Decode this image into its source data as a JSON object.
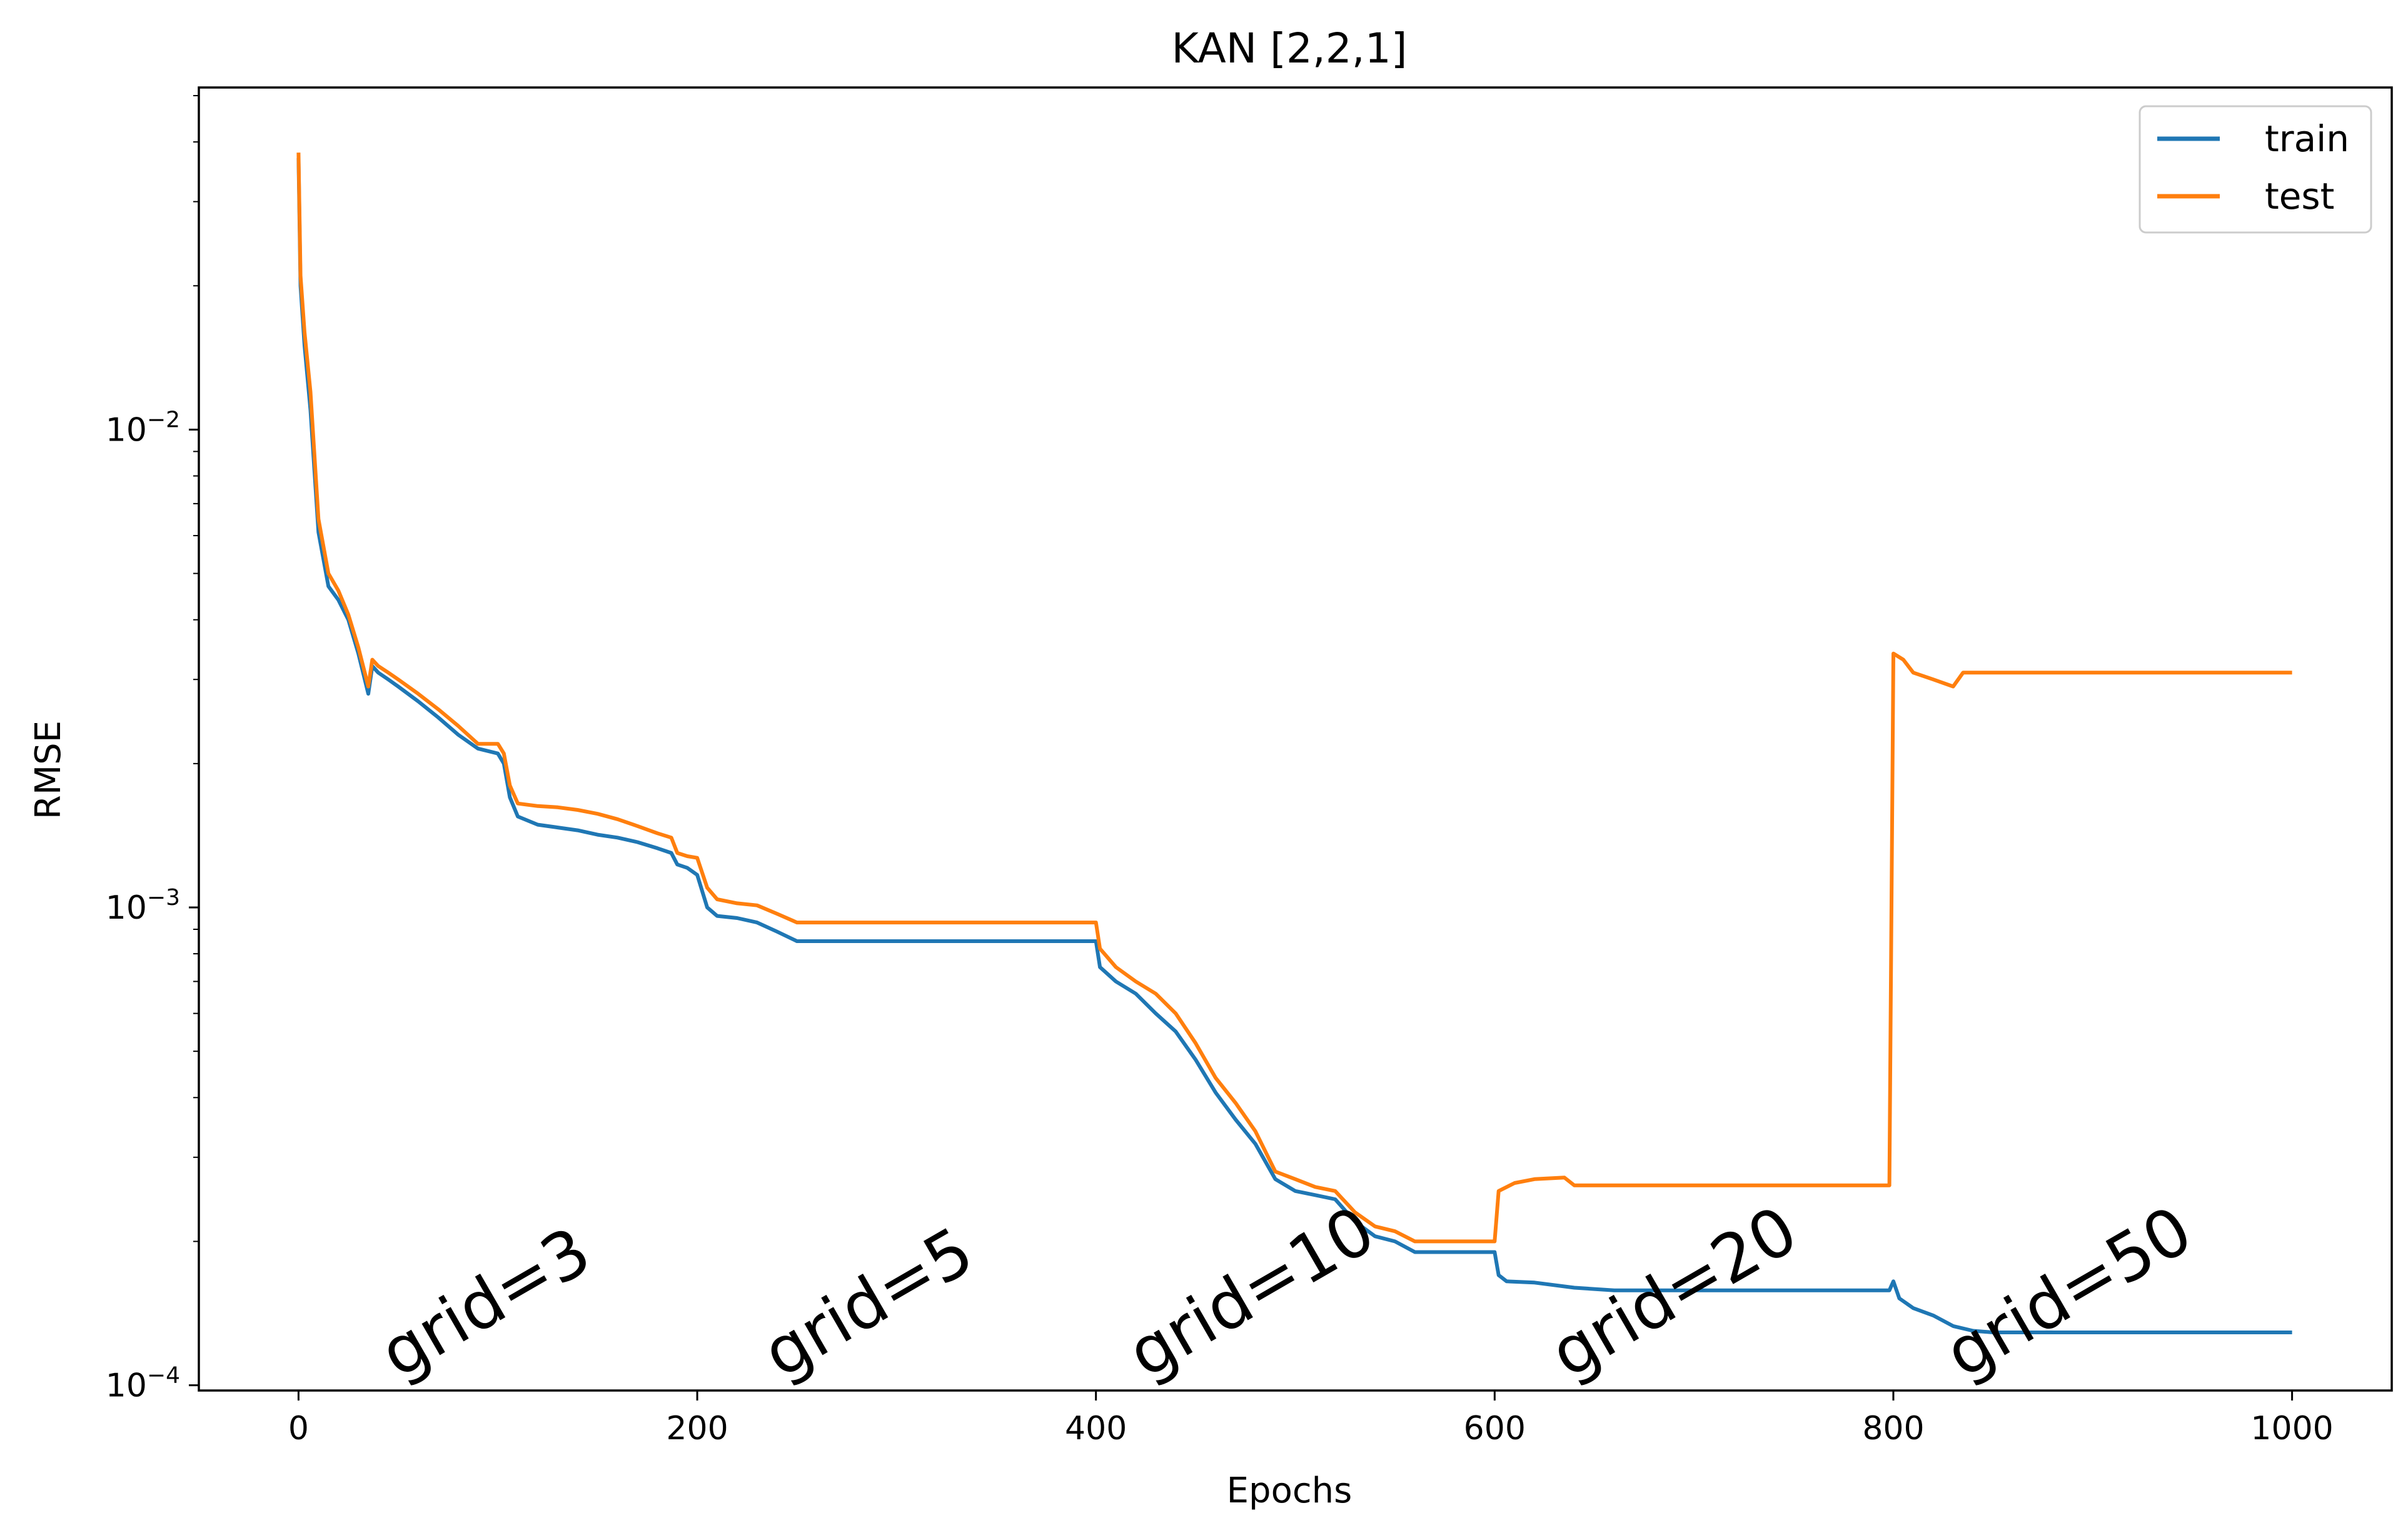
{
  "chart_data": {
    "type": "line",
    "title": "KAN [2,2,1]",
    "xlabel": "Epochs",
    "ylabel": "RMSE",
    "yscale": "log",
    "xlim": [
      -50,
      1050
    ],
    "ylim": [
      9.75e-05,
      0.052
    ],
    "x_ticks": [
      {
        "value": 0,
        "label": "0"
      },
      {
        "value": 200,
        "label": "200"
      },
      {
        "value": 400,
        "label": "400"
      },
      {
        "value": 600,
        "label": "600"
      },
      {
        "value": 800,
        "label": "800"
      },
      {
        "value": 1000,
        "label": "1000"
      }
    ],
    "y_ticks": [
      {
        "value": 0.0001,
        "base": "10",
        "exp": "−4"
      },
      {
        "value": 0.001,
        "base": "10",
        "exp": "−3"
      },
      {
        "value": 0.01,
        "base": "10",
        "exp": "−2"
      }
    ],
    "grid": false,
    "legend": {
      "placement": "top-right"
    },
    "series": [
      {
        "name": "train",
        "color": "#1f77b4",
        "points": [
          [
            0,
            0.037
          ],
          [
            1,
            0.02
          ],
          [
            3,
            0.015
          ],
          [
            6,
            0.011
          ],
          [
            10,
            0.0061
          ],
          [
            15,
            0.0047
          ],
          [
            20,
            0.0044
          ],
          [
            25,
            0.004
          ],
          [
            30,
            0.0034
          ],
          [
            35,
            0.0028
          ],
          [
            37,
            0.0032
          ],
          [
            40,
            0.0031
          ],
          [
            45,
            0.003
          ],
          [
            50,
            0.0029
          ],
          [
            60,
            0.0027
          ],
          [
            70,
            0.0025
          ],
          [
            80,
            0.0023
          ],
          [
            90,
            0.00215
          ],
          [
            100,
            0.0021
          ],
          [
            103,
            0.002
          ],
          [
            106,
            0.0017
          ],
          [
            110,
            0.00155
          ],
          [
            120,
            0.00149
          ],
          [
            130,
            0.00147
          ],
          [
            140,
            0.00145
          ],
          [
            150,
            0.00142
          ],
          [
            160,
            0.0014
          ],
          [
            170,
            0.00137
          ],
          [
            180,
            0.00133
          ],
          [
            187,
            0.0013
          ],
          [
            190,
            0.00123
          ],
          [
            195,
            0.00121
          ],
          [
            200,
            0.00117
          ],
          [
            205,
            0.001
          ],
          [
            210,
            0.00096
          ],
          [
            220,
            0.00095
          ],
          [
            230,
            0.00093
          ],
          [
            240,
            0.00089
          ],
          [
            250,
            0.00085
          ],
          [
            300,
            0.00085
          ],
          [
            350,
            0.00085
          ],
          [
            400,
            0.00085
          ],
          [
            402,
            0.00075
          ],
          [
            410,
            0.0007
          ],
          [
            420,
            0.00066
          ],
          [
            430,
            0.0006
          ],
          [
            440,
            0.00055
          ],
          [
            450,
            0.00048
          ],
          [
            460,
            0.00041
          ],
          [
            470,
            0.00036
          ],
          [
            480,
            0.00032
          ],
          [
            490,
            0.00027
          ],
          [
            500,
            0.000255
          ],
          [
            510,
            0.00025
          ],
          [
            520,
            0.000245
          ],
          [
            530,
            0.00022
          ],
          [
            540,
            0.000205
          ],
          [
            550,
            0.0002
          ],
          [
            560,
            0.00019
          ],
          [
            600,
            0.00019
          ],
          [
            602,
            0.00017
          ],
          [
            606,
            0.000165
          ],
          [
            620,
            0.000164
          ],
          [
            640,
            0.00016
          ],
          [
            660,
            0.000158
          ],
          [
            700,
            0.000158
          ],
          [
            750,
            0.000158
          ],
          [
            798,
            0.000158
          ],
          [
            800,
            0.000165
          ],
          [
            803,
            0.000152
          ],
          [
            810,
            0.000145
          ],
          [
            820,
            0.00014
          ],
          [
            830,
            0.000133
          ],
          [
            840,
            0.00013
          ],
          [
            850,
            0.000129
          ],
          [
            900,
            0.000129
          ],
          [
            1000,
            0.000129
          ]
        ]
      },
      {
        "name": "test",
        "color": "#ff7f0e",
        "points": [
          [
            0,
            0.038
          ],
          [
            1,
            0.021
          ],
          [
            3,
            0.016
          ],
          [
            6,
            0.012
          ],
          [
            10,
            0.0065
          ],
          [
            15,
            0.005
          ],
          [
            20,
            0.0046
          ],
          [
            25,
            0.0041
          ],
          [
            30,
            0.0035
          ],
          [
            35,
            0.0029
          ],
          [
            37,
            0.0033
          ],
          [
            40,
            0.0032
          ],
          [
            45,
            0.0031
          ],
          [
            50,
            0.003
          ],
          [
            60,
            0.0028
          ],
          [
            70,
            0.0026
          ],
          [
            80,
            0.0024
          ],
          [
            90,
            0.0022
          ],
          [
            100,
            0.0022
          ],
          [
            103,
            0.0021
          ],
          [
            106,
            0.0018
          ],
          [
            110,
            0.00165
          ],
          [
            120,
            0.00163
          ],
          [
            130,
            0.00162
          ],
          [
            140,
            0.0016
          ],
          [
            150,
            0.00157
          ],
          [
            160,
            0.00153
          ],
          [
            170,
            0.00148
          ],
          [
            180,
            0.00143
          ],
          [
            187,
            0.0014
          ],
          [
            190,
            0.0013
          ],
          [
            195,
            0.00128
          ],
          [
            200,
            0.00127
          ],
          [
            205,
            0.0011
          ],
          [
            210,
            0.00104
          ],
          [
            220,
            0.00102
          ],
          [
            230,
            0.00101
          ],
          [
            240,
            0.00097
          ],
          [
            250,
            0.00093
          ],
          [
            300,
            0.00093
          ],
          [
            350,
            0.00093
          ],
          [
            400,
            0.00093
          ],
          [
            402,
            0.00082
          ],
          [
            410,
            0.00075
          ],
          [
            420,
            0.0007
          ],
          [
            430,
            0.00066
          ],
          [
            440,
            0.0006
          ],
          [
            450,
            0.00052
          ],
          [
            460,
            0.00044
          ],
          [
            470,
            0.00039
          ],
          [
            480,
            0.00034
          ],
          [
            490,
            0.00028
          ],
          [
            500,
            0.00027
          ],
          [
            510,
            0.00026
          ],
          [
            520,
            0.000255
          ],
          [
            530,
            0.00023
          ],
          [
            540,
            0.000215
          ],
          [
            550,
            0.00021
          ],
          [
            560,
            0.0002
          ],
          [
            600,
            0.0002
          ],
          [
            602,
            0.000255
          ],
          [
            610,
            0.000265
          ],
          [
            620,
            0.00027
          ],
          [
            635,
            0.000272
          ],
          [
            640,
            0.000262
          ],
          [
            650,
            0.000262
          ],
          [
            700,
            0.000262
          ],
          [
            750,
            0.000262
          ],
          [
            798,
            0.000262
          ],
          [
            800,
            0.0034
          ],
          [
            805,
            0.0033
          ],
          [
            810,
            0.0031
          ],
          [
            820,
            0.003
          ],
          [
            830,
            0.0029
          ],
          [
            835,
            0.0031
          ],
          [
            850,
            0.0031
          ],
          [
            900,
            0.0031
          ],
          [
            1000,
            0.0031
          ]
        ]
      }
    ],
    "annotations": [
      {
        "text": "grid=3",
        "x": 50,
        "y": 0.000103
      },
      {
        "text": "grid=5",
        "x": 242,
        "y": 0.000103
      },
      {
        "text": "grid=10",
        "x": 425,
        "y": 0.000103
      },
      {
        "text": "grid=20",
        "x": 637,
        "y": 0.000103
      },
      {
        "text": "grid=50",
        "x": 835,
        "y": 0.000103
      }
    ]
  }
}
